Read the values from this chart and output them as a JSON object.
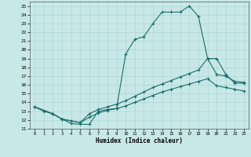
{
  "xlabel": "Humidex (Indice chaleur)",
  "background_color": "#c8e8e8",
  "grid_color": "#a8d0d0",
  "line_color": "#1a6b6b",
  "xlim": [
    -0.5,
    23.5
  ],
  "ylim": [
    11,
    25.5
  ],
  "xticks": [
    0,
    1,
    2,
    3,
    4,
    5,
    6,
    7,
    8,
    9,
    10,
    11,
    12,
    13,
    14,
    15,
    16,
    17,
    18,
    19,
    20,
    21,
    22,
    23
  ],
  "yticks": [
    11,
    12,
    13,
    14,
    15,
    16,
    17,
    18,
    19,
    20,
    21,
    22,
    23,
    24,
    25
  ],
  "series1_x": [
    0,
    1,
    2,
    3,
    4,
    5,
    6,
    7,
    8,
    9,
    10,
    11,
    12,
    13,
    14,
    15,
    16,
    17,
    18,
    19,
    20,
    21,
    22,
    23
  ],
  "series1_y": [
    13.5,
    13.0,
    12.7,
    12.1,
    11.6,
    11.5,
    11.5,
    13.0,
    13.2,
    13.3,
    19.5,
    21.2,
    21.5,
    23.0,
    24.3,
    24.3,
    24.3,
    25.0,
    23.8,
    19.0,
    19.0,
    17.2,
    16.2,
    16.2
  ],
  "series2_x": [
    0,
    2,
    3,
    4,
    5,
    6,
    7,
    8,
    9,
    10,
    11,
    12,
    13,
    14,
    15,
    16,
    17,
    18,
    19,
    20,
    21,
    22,
    23
  ],
  "series2_y": [
    13.5,
    12.7,
    12.1,
    11.9,
    11.7,
    12.7,
    13.2,
    13.5,
    13.8,
    14.2,
    14.7,
    15.2,
    15.7,
    16.1,
    16.5,
    16.9,
    17.3,
    17.7,
    19.0,
    17.2,
    17.0,
    16.4,
    16.3
  ],
  "series3_x": [
    0,
    2,
    3,
    4,
    5,
    6,
    7,
    8,
    9,
    10,
    11,
    12,
    13,
    14,
    15,
    16,
    17,
    18,
    19,
    20,
    21,
    22,
    23
  ],
  "series3_y": [
    13.5,
    12.7,
    12.1,
    11.9,
    11.7,
    12.3,
    12.8,
    13.1,
    13.3,
    13.6,
    14.0,
    14.4,
    14.8,
    15.2,
    15.5,
    15.8,
    16.1,
    16.4,
    16.7,
    15.9,
    15.7,
    15.5,
    15.3
  ]
}
